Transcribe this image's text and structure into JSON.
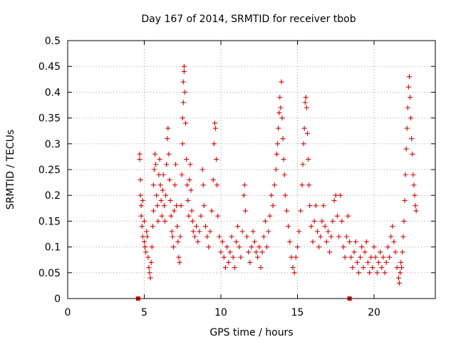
{
  "chart_data": {
    "type": "scatter",
    "title": "Day 167 of 2014, SRMTID for receiver tbob",
    "xlabel": "GPS time / hours",
    "ylabel": "SRMTID / TECUs",
    "xlim": [
      0,
      24
    ],
    "ylim": [
      0,
      0.5
    ],
    "xticks": [
      0,
      5,
      10,
      15,
      20
    ],
    "xtick_labels": [
      "0",
      "5",
      "10",
      "15",
      "20"
    ],
    "yticks": [
      0,
      0.05,
      0.1,
      0.15,
      0.2,
      0.25,
      0.3,
      0.35,
      0.4,
      0.45,
      0.5
    ],
    "ytick_labels": [
      "0",
      "0.05",
      "0.1",
      "0.15",
      "0.2",
      "0.25",
      "0.3",
      "0.35",
      "0.4",
      "0.45",
      "0.5"
    ],
    "grid": true,
    "marker_color": "#e00000",
    "series": [
      {
        "name": "SRMTID",
        "marker": "plus",
        "points": [
          [
            4.7,
            0.28
          ],
          [
            4.7,
            0.27
          ],
          [
            4.75,
            0.23
          ],
          [
            4.75,
            0.2
          ],
          [
            4.8,
            0.18
          ],
          [
            4.8,
            0.16
          ],
          [
            4.85,
            0.14
          ],
          [
            4.9,
            0.19
          ],
          [
            4.9,
            0.12
          ],
          [
            5.0,
            0.15
          ],
          [
            5.0,
            0.11
          ],
          [
            5.05,
            0.1
          ],
          [
            5.1,
            0.09
          ],
          [
            5.15,
            0.13
          ],
          [
            5.2,
            0.12
          ],
          [
            5.25,
            0.08
          ],
          [
            5.3,
            0.06
          ],
          [
            5.35,
            0.05
          ],
          [
            5.4,
            0.04
          ],
          [
            5.45,
            0.07
          ],
          [
            5.5,
            0.1
          ],
          [
            5.55,
            0.14
          ],
          [
            5.6,
            0.17
          ],
          [
            5.6,
            0.22
          ],
          [
            5.65,
            0.25
          ],
          [
            5.7,
            0.28
          ],
          [
            5.75,
            0.26
          ],
          [
            5.8,
            0.2
          ],
          [
            5.85,
            0.18
          ],
          [
            5.9,
            0.15
          ],
          [
            5.95,
            0.24
          ],
          [
            6.0,
            0.27
          ],
          [
            6.05,
            0.22
          ],
          [
            6.1,
            0.19
          ],
          [
            6.15,
            0.16
          ],
          [
            6.2,
            0.21
          ],
          [
            6.25,
            0.24
          ],
          [
            6.3,
            0.18
          ],
          [
            6.35,
            0.15
          ],
          [
            6.4,
            0.2
          ],
          [
            6.45,
            0.26
          ],
          [
            6.5,
            0.31
          ],
          [
            6.55,
            0.33
          ],
          [
            6.6,
            0.28
          ],
          [
            6.65,
            0.23
          ],
          [
            6.7,
            0.19
          ],
          [
            6.75,
            0.16
          ],
          [
            6.8,
            0.13
          ],
          [
            6.85,
            0.12
          ],
          [
            6.9,
            0.1
          ],
          [
            6.95,
            0.17
          ],
          [
            7.0,
            0.22
          ],
          [
            7.05,
            0.26
          ],
          [
            7.1,
            0.18
          ],
          [
            7.15,
            0.14
          ],
          [
            7.2,
            0.11
          ],
          [
            7.25,
            0.08
          ],
          [
            7.3,
            0.07
          ],
          [
            7.35,
            0.12
          ],
          [
            7.4,
            0.18
          ],
          [
            7.45,
            0.24
          ],
          [
            7.5,
            0.3
          ],
          [
            7.5,
            0.35
          ],
          [
            7.55,
            0.38
          ],
          [
            7.55,
            0.42
          ],
          [
            7.6,
            0.45
          ],
          [
            7.6,
            0.44
          ],
          [
            7.65,
            0.4
          ],
          [
            7.7,
            0.34
          ],
          [
            7.75,
            0.27
          ],
          [
            7.8,
            0.22
          ],
          [
            7.85,
            0.19
          ],
          [
            7.9,
            0.16
          ],
          [
            7.95,
            0.23
          ],
          [
            8.0,
            0.26
          ],
          [
            8.05,
            0.21
          ],
          [
            8.1,
            0.17
          ],
          [
            8.15,
            0.15
          ],
          [
            8.2,
            0.13
          ],
          [
            8.3,
            0.12
          ],
          [
            8.4,
            0.14
          ],
          [
            8.5,
            0.11
          ],
          [
            8.6,
            0.13
          ],
          [
            8.7,
            0.16
          ],
          [
            8.8,
            0.25
          ],
          [
            8.85,
            0.22
          ],
          [
            8.9,
            0.18
          ],
          [
            9.0,
            0.14
          ],
          [
            9.1,
            0.12
          ],
          [
            9.2,
            0.1
          ],
          [
            9.3,
            0.13
          ],
          [
            9.4,
            0.17
          ],
          [
            9.5,
            0.23
          ],
          [
            9.55,
            0.3
          ],
          [
            9.6,
            0.34
          ],
          [
            9.65,
            0.33
          ],
          [
            9.7,
            0.27
          ],
          [
            9.75,
            0.22
          ],
          [
            9.8,
            0.16
          ],
          [
            9.9,
            0.12
          ],
          [
            10.0,
            0.09
          ],
          [
            10.1,
            0.11
          ],
          [
            10.2,
            0.08
          ],
          [
            10.3,
            0.06
          ],
          [
            10.4,
            0.1
          ],
          [
            10.5,
            0.07
          ],
          [
            10.6,
            0.09
          ],
          [
            10.7,
            0.12
          ],
          [
            10.8,
            0.08
          ],
          [
            10.9,
            0.06
          ],
          [
            11.0,
            0.11
          ],
          [
            11.1,
            0.14
          ],
          [
            11.2,
            0.1
          ],
          [
            11.3,
            0.08
          ],
          [
            11.4,
            0.13
          ],
          [
            11.5,
            0.2
          ],
          [
            11.55,
            0.22
          ],
          [
            11.6,
            0.17
          ],
          [
            11.7,
            0.12
          ],
          [
            11.8,
            0.09
          ],
          [
            11.9,
            0.07
          ],
          [
            12.0,
            0.1
          ],
          [
            12.1,
            0.13
          ],
          [
            12.2,
            0.11
          ],
          [
            12.3,
            0.09
          ],
          [
            12.4,
            0.08
          ],
          [
            12.5,
            0.1
          ],
          [
            12.6,
            0.06
          ],
          [
            12.7,
            0.09
          ],
          [
            12.8,
            0.12
          ],
          [
            12.9,
            0.15
          ],
          [
            13.0,
            0.1
          ],
          [
            13.1,
            0.13
          ],
          [
            13.2,
            0.16
          ],
          [
            13.3,
            0.2
          ],
          [
            13.4,
            0.18
          ],
          [
            13.5,
            0.22
          ],
          [
            13.6,
            0.25
          ],
          [
            13.65,
            0.28
          ],
          [
            13.7,
            0.3
          ],
          [
            13.75,
            0.33
          ],
          [
            13.8,
            0.36
          ],
          [
            13.85,
            0.39
          ],
          [
            13.9,
            0.37
          ],
          [
            13.95,
            0.42
          ],
          [
            14.0,
            0.35
          ],
          [
            14.05,
            0.31
          ],
          [
            14.1,
            0.27
          ],
          [
            14.15,
            0.24
          ],
          [
            14.2,
            0.2
          ],
          [
            14.3,
            0.17
          ],
          [
            14.4,
            0.14
          ],
          [
            14.5,
            0.11
          ],
          [
            14.6,
            0.08
          ],
          [
            14.7,
            0.06
          ],
          [
            14.8,
            0.05
          ],
          [
            14.9,
            0.08
          ],
          [
            15.0,
            0.1
          ],
          [
            15.1,
            0.13
          ],
          [
            15.2,
            0.17
          ],
          [
            15.3,
            0.22
          ],
          [
            15.35,
            0.26
          ],
          [
            15.4,
            0.3
          ],
          [
            15.45,
            0.33
          ],
          [
            15.5,
            0.38
          ],
          [
            15.55,
            0.39
          ],
          [
            15.6,
            0.37
          ],
          [
            15.65,
            0.32
          ],
          [
            15.7,
            0.27
          ],
          [
            15.75,
            0.22
          ],
          [
            15.8,
            0.18
          ],
          [
            15.9,
            0.14
          ],
          [
            16.0,
            0.11
          ],
          [
            16.1,
            0.15
          ],
          [
            16.2,
            0.18
          ],
          [
            16.3,
            0.13
          ],
          [
            16.4,
            0.1
          ],
          [
            16.5,
            0.12
          ],
          [
            16.6,
            0.15
          ],
          [
            16.7,
            0.18
          ],
          [
            16.8,
            0.14
          ],
          [
            16.9,
            0.11
          ],
          [
            17.0,
            0.13
          ],
          [
            17.1,
            0.09
          ],
          [
            17.2,
            0.12
          ],
          [
            17.3,
            0.15
          ],
          [
            17.4,
            0.19
          ],
          [
            17.5,
            0.2
          ],
          [
            17.6,
            0.16
          ],
          [
            17.7,
            0.12
          ],
          [
            17.8,
            0.2
          ],
          [
            17.9,
            0.15
          ],
          [
            18.0,
            0.1
          ],
          [
            18.1,
            0.08
          ],
          [
            18.2,
            0.12
          ],
          [
            18.3,
            0.16
          ],
          [
            18.4,
            0.11
          ],
          [
            18.5,
            0.08
          ],
          [
            18.6,
            0.06
          ],
          [
            18.7,
            0.09
          ],
          [
            18.8,
            0.11
          ],
          [
            18.9,
            0.07
          ],
          [
            19.0,
            0.05
          ],
          [
            19.1,
            0.08
          ],
          [
            19.2,
            0.1
          ],
          [
            19.3,
            0.06
          ],
          [
            19.4,
            0.09
          ],
          [
            19.5,
            0.11
          ],
          [
            19.6,
            0.07
          ],
          [
            19.7,
            0.05
          ],
          [
            19.8,
            0.08
          ],
          [
            19.9,
            0.06
          ],
          [
            20.0,
            0.1
          ],
          [
            20.1,
            0.08
          ],
          [
            20.2,
            0.05
          ],
          [
            20.3,
            0.07
          ],
          [
            20.4,
            0.09
          ],
          [
            20.5,
            0.06
          ],
          [
            20.6,
            0.08
          ],
          [
            20.7,
            0.05
          ],
          [
            20.8,
            0.07
          ],
          [
            20.9,
            0.1
          ],
          [
            21.0,
            0.08
          ],
          [
            21.1,
            0.12
          ],
          [
            21.2,
            0.14
          ],
          [
            21.3,
            0.11
          ],
          [
            21.4,
            0.09
          ],
          [
            21.5,
            0.06
          ],
          [
            21.6,
            0.04
          ],
          [
            21.65,
            0.03
          ],
          [
            21.7,
            0.05
          ],
          [
            21.75,
            0.07
          ],
          [
            21.8,
            0.06
          ],
          [
            21.85,
            0.09
          ],
          [
            21.9,
            0.12
          ],
          [
            21.95,
            0.15
          ],
          [
            22.0,
            0.19
          ],
          [
            22.05,
            0.24
          ],
          [
            22.1,
            0.29
          ],
          [
            22.15,
            0.33
          ],
          [
            22.2,
            0.37
          ],
          [
            22.25,
            0.41
          ],
          [
            22.3,
            0.43
          ],
          [
            22.35,
            0.39
          ],
          [
            22.4,
            0.35
          ],
          [
            22.45,
            0.31
          ],
          [
            22.5,
            0.28
          ],
          [
            22.55,
            0.24
          ],
          [
            22.6,
            0.22
          ],
          [
            22.65,
            0.2
          ],
          [
            22.7,
            0.18
          ],
          [
            22.75,
            0.17
          ]
        ]
      },
      {
        "name": "axis markers",
        "marker": "square",
        "points": [
          [
            4.6,
            0.0
          ],
          [
            18.4,
            0.0
          ]
        ]
      }
    ]
  }
}
